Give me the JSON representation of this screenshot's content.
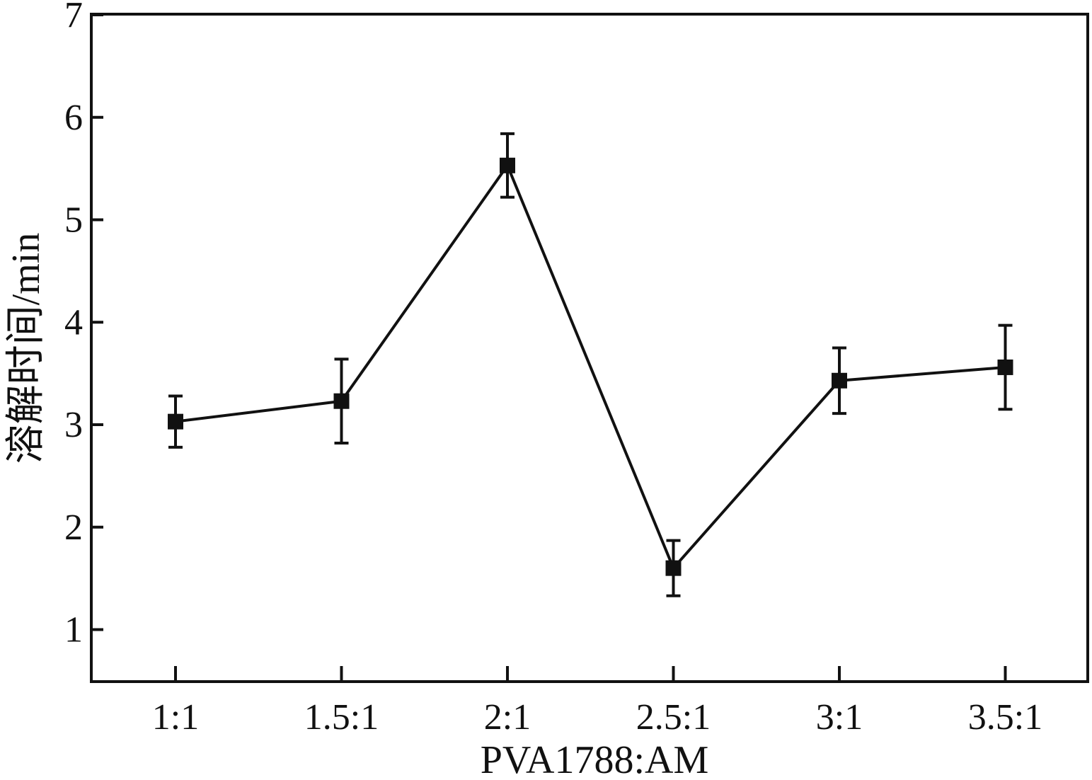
{
  "chart_data": {
    "type": "line",
    "title": "",
    "xlabel": "PVA1788:AM",
    "ylabel": "溶解时间/min",
    "categories": [
      "1:1",
      "1.5:1",
      "2:1",
      "2.5:1",
      "3:1",
      "3.5:1"
    ],
    "series": [
      {
        "values": [
          3.03,
          3.23,
          5.53,
          1.6,
          3.43,
          3.56
        ],
        "error": [
          0.25,
          0.41,
          0.31,
          0.27,
          0.32,
          0.41
        ]
      }
    ],
    "ylim": [
      0.5,
      7
    ],
    "yticks": [
      1,
      2,
      3,
      4,
      5,
      6,
      7
    ],
    "grid": false,
    "colors": {
      "line": "#111111",
      "marker": "#111111",
      "axis": "#111111"
    }
  }
}
